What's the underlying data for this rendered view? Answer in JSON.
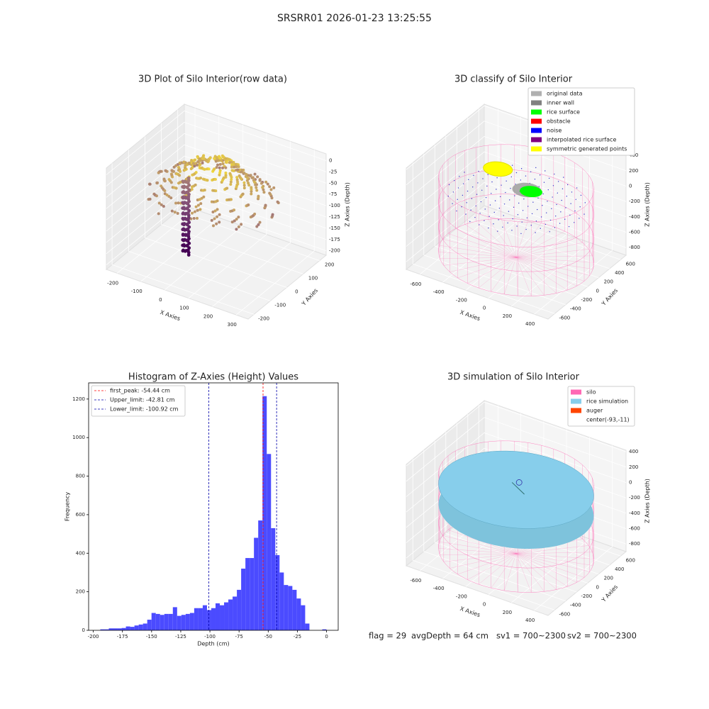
{
  "title": "SRSRR01 2026-01-23 13:25:55",
  "chart_data": [
    {
      "type": "scatter3d",
      "title": "3D Plot of Silo Interior(row data)",
      "xlabel": "X Axies",
      "ylabel": "Y Axies",
      "zlabel": "Z Axies (Depth)",
      "xlim": [
        -245,
        350
      ],
      "ylim": [
        -235,
        240
      ],
      "zlim": [
        -210,
        15
      ],
      "xticks": [
        -200,
        -100,
        0,
        100,
        200,
        300
      ],
      "yticks": [
        -200,
        -100,
        0,
        100,
        200
      ],
      "zticks": [
        0,
        -25,
        -50,
        -75,
        -100,
        -125,
        -150,
        -175,
        -200
      ]
    },
    {
      "type": "scatter3d",
      "title": "3D classify of Silo Interior",
      "xlabel": "X Axies",
      "ylabel": "Y Axies",
      "zlabel": "Z Axies (Depth)",
      "xlim": [
        -720,
        520
      ],
      "ylim": [
        -720,
        700
      ],
      "zlim": [
        -900,
        420
      ],
      "xticks": [
        -600,
        -400,
        -200,
        0,
        200,
        400
      ],
      "yticks": [
        -600,
        -400,
        -200,
        0,
        200,
        400,
        600
      ],
      "zticks": [
        400,
        200,
        0,
        -200,
        -400,
        -600,
        -800
      ],
      "legend": [
        {
          "name": "original data",
          "color": "#b0b0b0"
        },
        {
          "name": "inner wall",
          "color": "#808080"
        },
        {
          "name": "rice surface",
          "color": "#00ff00"
        },
        {
          "name": "obstacle",
          "color": "#ff0000"
        },
        {
          "name": "noise",
          "color": "#0000ff"
        },
        {
          "name": "interpolated rice surface",
          "color": "#800080"
        },
        {
          "name": "symmetric generated points",
          "color": "#ffff00"
        }
      ]
    },
    {
      "type": "histogram",
      "title": "Histogram of Z-Axies (Height) Values",
      "xlabel": "Depth (cm)",
      "ylabel": "Frequency",
      "color": "#4b4bff",
      "bins": [
        -194,
        -190.34,
        -186.68,
        -183.02,
        -179.36,
        -175.7,
        -172.04,
        -168.38,
        -164.72,
        -161.06,
        -157.4,
        -153.74,
        -150.08,
        -146.42,
        -142.76,
        -139.1,
        -135.44,
        -131.78,
        -128.12,
        -124.46,
        -120.8,
        -117.14,
        -113.48,
        -109.82,
        -106.16,
        -102.5,
        -98.84,
        -95.18,
        -91.52,
        -87.86,
        -84.2,
        -80.54,
        -76.88,
        -73.22,
        -69.56,
        -65.9,
        -62.24,
        -58.58,
        -54.92,
        -51.26,
        -47.6,
        -43.94,
        -40.28,
        -36.62,
        -32.96,
        -29.3,
        -25.64,
        -21.98,
        -18.32,
        -14.66,
        -11,
        -7.34,
        -3.68,
        -0.02
      ],
      "counts": [
        5,
        5,
        10,
        10,
        10,
        12,
        20,
        18,
        25,
        30,
        35,
        55,
        90,
        85,
        80,
        85,
        85,
        120,
        75,
        80,
        85,
        90,
        115,
        115,
        130,
        105,
        115,
        140,
        130,
        145,
        160,
        175,
        210,
        320,
        375,
        375,
        480,
        570,
        1215,
        915,
        530,
        390,
        300,
        235,
        230,
        210,
        165,
        130,
        35,
        0,
        0,
        0,
        5
      ],
      "lines": [
        {
          "label": "first_peak: -54.44 cm",
          "value": -54.44,
          "color": "#ff0000"
        },
        {
          "label": "Upper_limit: -42.81 cm",
          "value": -42.81,
          "color": "#0000aa"
        },
        {
          "label": "Lower_limit: -100.92 cm",
          "value": -100.92,
          "color": "#0000aa"
        }
      ],
      "xlim": [
        -204,
        10
      ],
      "ylim": [
        0,
        1284
      ],
      "xticks": [
        -200,
        -175,
        -150,
        -125,
        -100,
        -75,
        -50,
        -25,
        0
      ],
      "yticks": [
        0,
        200,
        400,
        600,
        800,
        1000,
        1200
      ]
    },
    {
      "type": "surface3d",
      "title": "3D simulation of Silo Interior",
      "xlabel": "X Axies",
      "ylabel": "Y Axies",
      "zlabel": "Z Axies (Depth)",
      "xlim": [
        -720,
        520
      ],
      "ylim": [
        -720,
        700
      ],
      "zlim": [
        -900,
        420
      ],
      "xticks": [
        -600,
        -400,
        -200,
        0,
        200,
        400
      ],
      "yticks": [
        -600,
        -400,
        -200,
        0,
        200,
        400,
        600
      ],
      "zticks": [
        400,
        200,
        0,
        -200,
        -400,
        -600,
        -800
      ],
      "legend": [
        {
          "name": "silo",
          "color": "#ff69b4"
        },
        {
          "name": "rice simulation",
          "color": "#87ceeb"
        },
        {
          "name": "auger",
          "color": "#ff4500"
        },
        {
          "name": "center(-93,-11)"
        }
      ]
    }
  ],
  "footer": [
    "flag = 29",
    "avgDepth = 64 cm",
    "sv1 = 700~2300",
    "sv2 = 700~2300"
  ]
}
